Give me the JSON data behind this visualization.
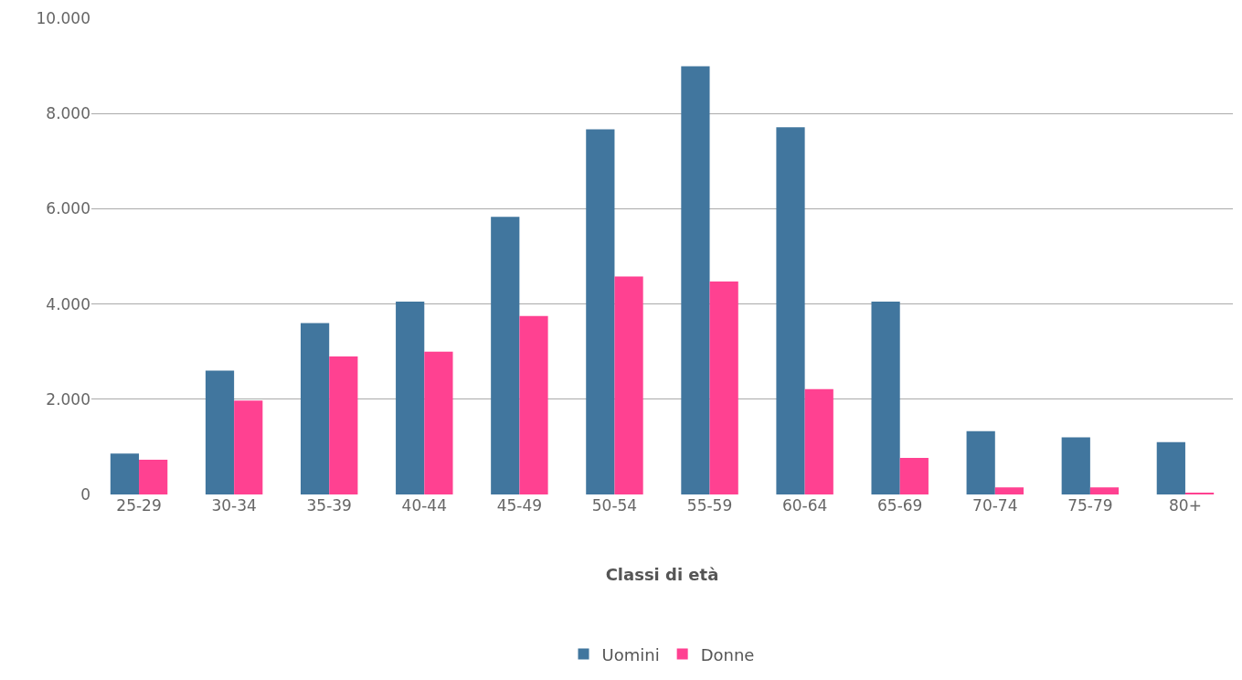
{
  "chart_data": {
    "type": "bar",
    "xlabel": "Classi di età",
    "categories": [
      "25-29",
      "30-34",
      "35-39",
      "40-44",
      "45-49",
      "50-54",
      "55-59",
      "60-64",
      "65-69",
      "70-74",
      "75-79",
      "80+"
    ],
    "series": [
      {
        "name": "Uomini",
        "color": "#41769e",
        "values": [
          860,
          2600,
          3600,
          4050,
          5830,
          7670,
          8990,
          7710,
          4050,
          1330,
          1200,
          1100
        ]
      },
      {
        "name": "Donne",
        "color": "#ff4191",
        "values": [
          730,
          1970,
          2900,
          3000,
          3750,
          4580,
          4470,
          2210,
          770,
          150,
          150,
          20
        ]
      }
    ],
    "ylim": [
      0,
      10000
    ],
    "yticks": [
      0,
      {
        "value": 2000,
        "label": "2.000"
      },
      {
        "value": 4000,
        "label": "4.000"
      },
      {
        "value": 6000,
        "label": "6.000"
      },
      {
        "value": 8000,
        "label": "8.000"
      },
      {
        "value": 10000,
        "label": "10.000"
      }
    ],
    "grid": "y",
    "legend": "bottom"
  }
}
